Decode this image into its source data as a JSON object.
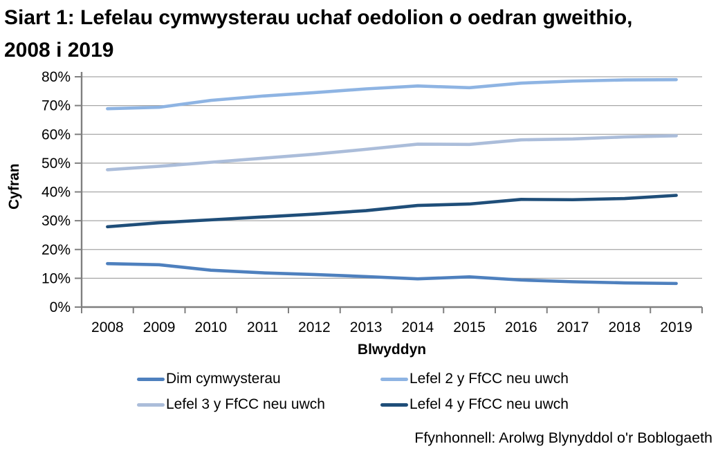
{
  "title": "Siart 1: Lefelau cymwysterau uchaf oedolion o oedran gweithio, 2008 i 2019",
  "source": "Ffynhonnell: Arolwg Blynyddol o'r Boblogaeth",
  "chart_data": {
    "type": "line",
    "title": "Siart 1: Lefelau cymwysterau uchaf oedolion o oedran gweithio, 2008 i 2019",
    "xlabel": "Blwyddyn",
    "ylabel": "Cyfran",
    "x": [
      2008,
      2009,
      2010,
      2011,
      2012,
      2013,
      2014,
      2015,
      2016,
      2017,
      2018,
      2019
    ],
    "ylim": [
      0,
      80
    ],
    "ytick_step": 10,
    "ytick_suffix": "%",
    "grid": true,
    "legend_position": "bottom",
    "axis_color": "#7F7F7F",
    "grid_color": "#A6A6A6",
    "text_color": "#000000",
    "series": [
      {
        "name": "Dim cymwysterau",
        "color": "#4E80BE",
        "values": [
          15.1,
          14.7,
          12.8,
          11.9,
          11.3,
          10.6,
          9.8,
          10.5,
          9.4,
          8.8,
          8.4,
          8.2
        ]
      },
      {
        "name": "Lefel 2 y FfCC neu uwch",
        "color": "#8EB4E3",
        "values": [
          68.9,
          69.4,
          71.8,
          73.3,
          74.5,
          75.8,
          76.8,
          76.2,
          77.8,
          78.5,
          78.9,
          79.0
        ]
      },
      {
        "name": "Lefel 3 y FfCC neu uwch",
        "color": "#ABBDDA",
        "values": [
          47.7,
          48.9,
          50.3,
          51.7,
          53.1,
          54.8,
          56.6,
          56.5,
          58.1,
          58.4,
          59.1,
          59.5
        ]
      },
      {
        "name": "Lefel 4 y FfCC neu uwch",
        "color": "#1F4E79",
        "values": [
          27.9,
          29.3,
          30.3,
          31.3,
          32.3,
          33.5,
          35.3,
          35.8,
          37.4,
          37.3,
          37.7,
          38.8
        ]
      }
    ]
  }
}
